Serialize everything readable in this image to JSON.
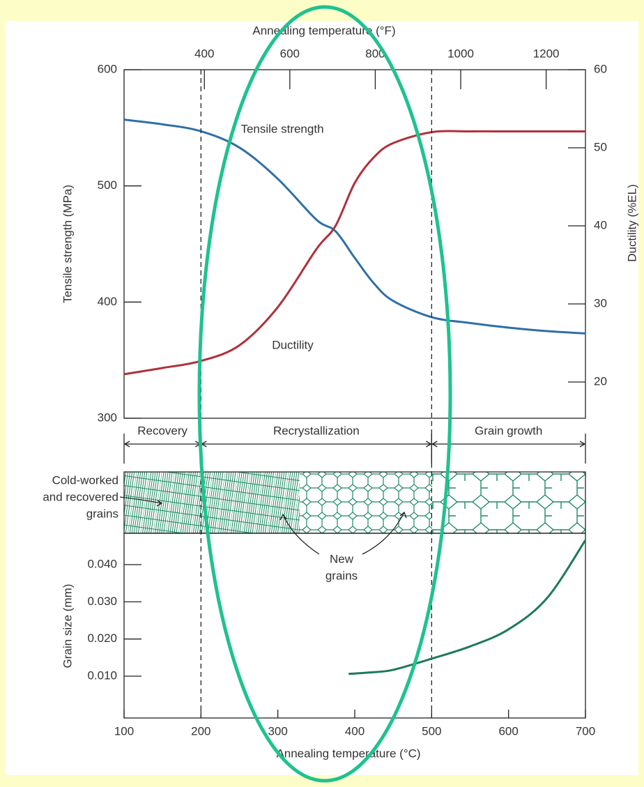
{
  "chart_data": [
    {
      "type": "line",
      "x2_label": "Annealing temperature (°F)",
      "y_label": "Tensile strength (MPa)",
      "y2_label": "Ductility (%EL)",
      "xlim": [
        100,
        700
      ],
      "x2lim": [
        212,
        1292
      ],
      "x2ticks": [
        400,
        600,
        800,
        1000,
        1200
      ],
      "ylim": [
        300,
        600
      ],
      "yticks": [
        300,
        400,
        500,
        600
      ],
      "y2lim": [
        15.36,
        60
      ],
      "y2ticks": [
        20,
        30,
        40,
        50,
        60
      ],
      "x": [
        100,
        150,
        200,
        250,
        300,
        350,
        375,
        400,
        425,
        450,
        500,
        550,
        600,
        650,
        700
      ],
      "series": [
        {
          "name": "Tensile strength",
          "color": "#2f6fa6",
          "values": [
            557,
            553,
            547,
            533,
            506,
            471,
            461,
            438,
            416,
            401,
            387,
            382,
            378,
            375,
            373
          ]
        },
        {
          "name": "Ductility",
          "color": "#b0303c",
          "axis": "y2",
          "values": [
            21,
            21.8,
            22.7,
            24.7,
            29.6,
            37,
            40,
            45.5,
            48.8,
            50.6,
            52,
            52.1,
            52.1,
            52.1,
            52.1
          ]
        }
      ],
      "boundaries": [
        200,
        500
      ],
      "regions": [
        {
          "label": "Recovery",
          "from": 100,
          "to": 200
        },
        {
          "label": "Recrystallization",
          "from": 200,
          "to": 500
        },
        {
          "label": "Grain growth",
          "from": 500,
          "to": 700
        }
      ]
    },
    {
      "type": "line",
      "x_label": "Annealing temperature (°C)",
      "y_label": "Grain size (mm)",
      "xlim": [
        100,
        700
      ],
      "xticks": [
        100,
        200,
        300,
        400,
        500,
        600,
        700
      ],
      "ylim": [
        -0.00125,
        0.04844
      ],
      "yticks": [
        {
          "value": 0.01,
          "label": "0.010"
        },
        {
          "value": 0.02,
          "label": "0.020"
        },
        {
          "value": 0.03,
          "label": "0.030"
        },
        {
          "value": 0.04,
          "label": "0.040"
        }
      ],
      "x": [
        392,
        420,
        450,
        500,
        550,
        600,
        650,
        700
      ],
      "values": [
        0.0106,
        0.011,
        0.0117,
        0.0147,
        0.018,
        0.0226,
        0.031,
        0.0466
      ],
      "color": "#1d7a58",
      "annotations": [
        {
          "text": [
            "Cold-worked",
            "and recovered",
            "grains"
          ]
        },
        {
          "text": [
            "New",
            "grains"
          ]
        }
      ]
    }
  ]
}
